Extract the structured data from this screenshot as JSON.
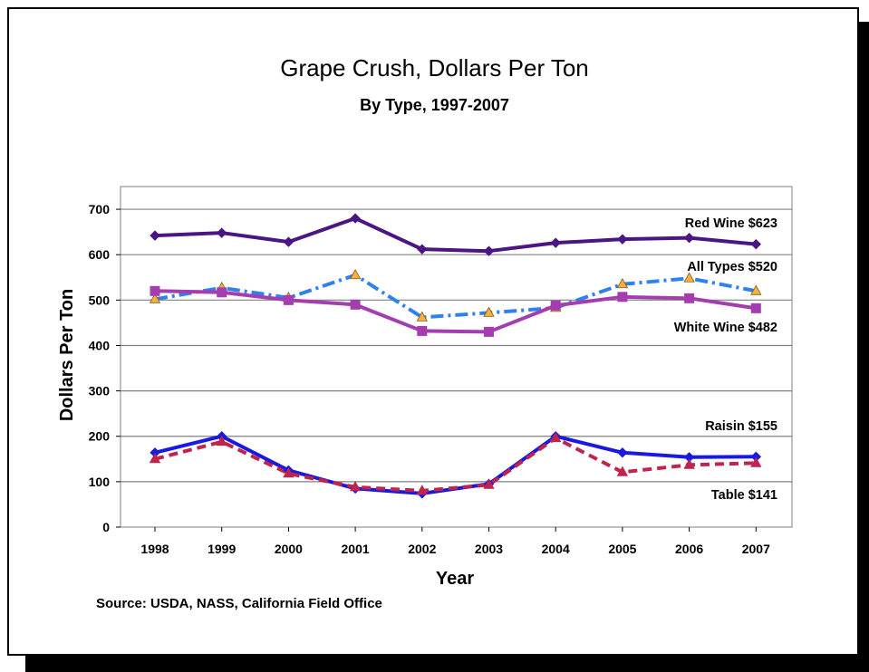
{
  "chart_data": {
    "type": "line",
    "title": "Grape Crush, Dollars Per Ton",
    "subtitle": "By Type, 1997-2007",
    "xlabel": "Year",
    "ylabel": "Dollars Per Ton",
    "ylim": [
      0,
      750
    ],
    "yticks": [
      0,
      100,
      200,
      300,
      400,
      500,
      600,
      700
    ],
    "categories": [
      "1998",
      "1999",
      "2000",
      "2001",
      "2002",
      "2003",
      "2004",
      "2005",
      "2006",
      "2007"
    ],
    "grid": true,
    "series": [
      {
        "name": "Red Wine",
        "label": "Red Wine $623",
        "color": "#4b1583",
        "style": "solid",
        "marker": "diamond",
        "values": [
          642,
          648,
          628,
          680,
          612,
          608,
          626,
          634,
          637,
          623
        ]
      },
      {
        "name": "All Types",
        "label": "All Types $520",
        "color": "#2f80f0",
        "style": "dashdot",
        "marker": "triangle",
        "marker_color": "#f5b041",
        "values": [
          502,
          527,
          505,
          555,
          462,
          472,
          483,
          535,
          548,
          520
        ]
      },
      {
        "name": "White Wine",
        "label": "White Wine $482",
        "color": "#a43db0",
        "style": "solid",
        "marker": "square",
        "values": [
          520,
          517,
          500,
          490,
          432,
          430,
          488,
          507,
          504,
          482
        ]
      },
      {
        "name": "Raisin",
        "label": "Raisin $155",
        "color": "#1a1adf",
        "style": "solid",
        "marker": "diamond",
        "values": [
          164,
          200,
          125,
          85,
          74,
          95,
          200,
          164,
          154,
          155
        ]
      },
      {
        "name": "Table",
        "label": "Table $141",
        "color": "#c0244c",
        "style": "dashed",
        "marker": "triangle",
        "values": [
          150,
          188,
          118,
          88,
          80,
          93,
          196,
          121,
          137,
          141
        ]
      }
    ],
    "source": "Source:  USDA, NASS, California Field Office"
  }
}
